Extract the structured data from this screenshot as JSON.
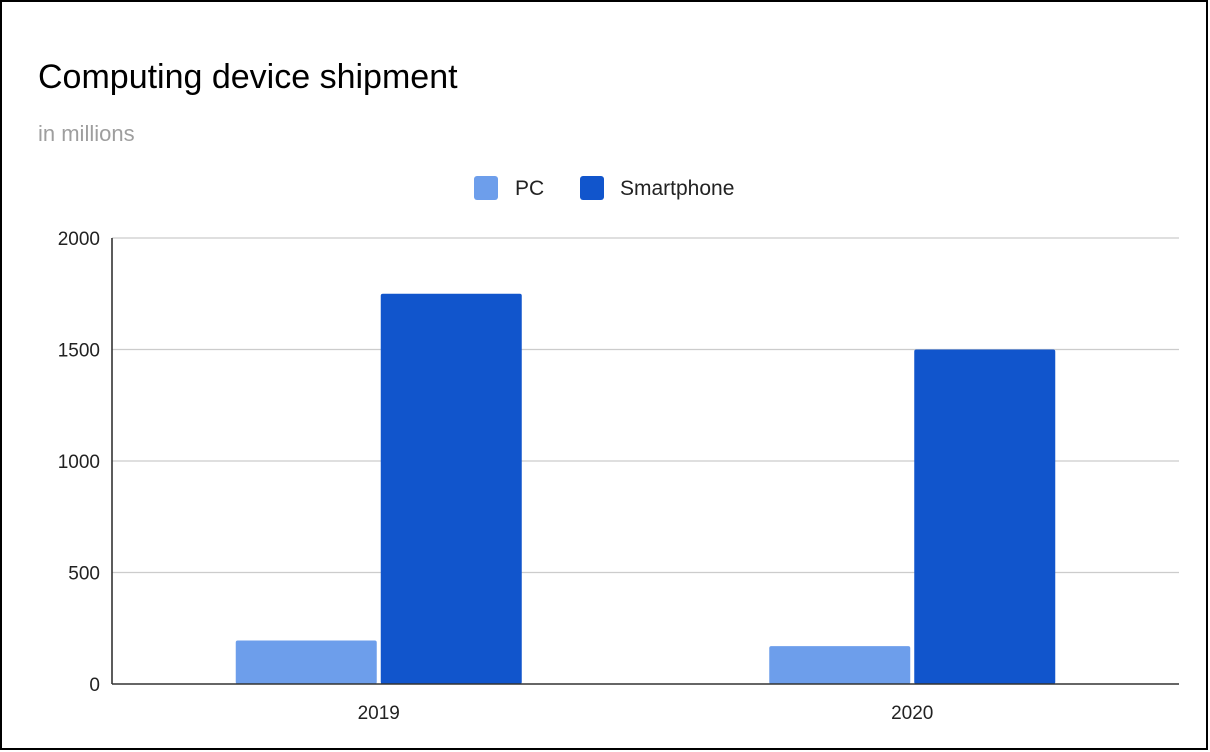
{
  "chart_data": {
    "type": "bar",
    "title": "Computing device shipment",
    "subtitle": "in millions",
    "xlabel": "",
    "ylabel": "",
    "categories": [
      "2019",
      "2020"
    ],
    "series": [
      {
        "name": "PC",
        "values": [
          195,
          170
        ],
        "color": "#6d9eeb"
      },
      {
        "name": "Smartphone",
        "values": [
          1750,
          1500
        ],
        "color": "#1155cc"
      }
    ],
    "ylim": [
      0,
      2000
    ],
    "yticks": [
      0,
      500,
      1000,
      1500,
      2000
    ],
    "grid": true,
    "legend_position": "top-center"
  }
}
